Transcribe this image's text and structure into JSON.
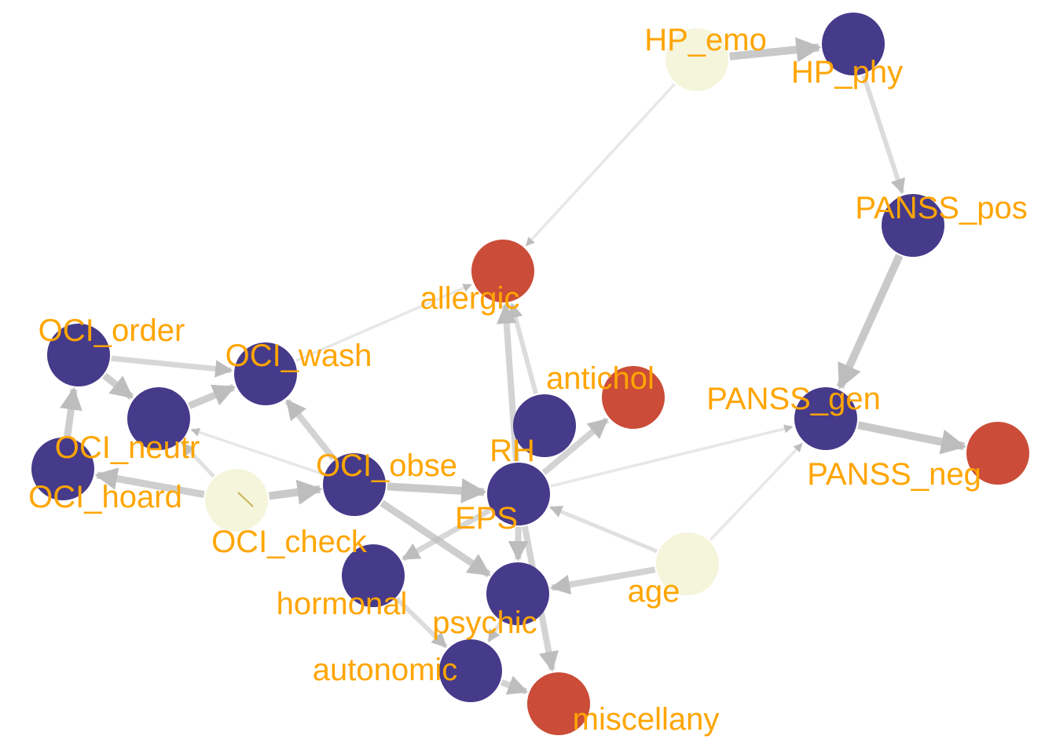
{
  "colors": {
    "background": "#ffffff",
    "label": "#FFA500",
    "node_groups": {
      "purple": "#463A8A",
      "red": "#CB4C38",
      "cream": "#F5F5DC"
    },
    "edge": "#BDBDBD"
  },
  "nodes": [
    {
      "id": "HP_emo",
      "label": "HP_emo",
      "group": "cream"
    },
    {
      "id": "HP_phy",
      "label": "HP_phy",
      "group": "purple"
    },
    {
      "id": "PANSS_pos",
      "label": "PANSS_pos",
      "group": "purple"
    },
    {
      "id": "PANSS_gen",
      "label": "PANSS_gen",
      "group": "purple"
    },
    {
      "id": "PANSS_neg",
      "label": "PANSS_neg",
      "group": "red"
    },
    {
      "id": "allergic",
      "label": "allergic",
      "group": "red"
    },
    {
      "id": "antichol",
      "label": "antichol",
      "group": "red"
    },
    {
      "id": "RH",
      "label": "RH",
      "group": "purple"
    },
    {
      "id": "EPS",
      "label": "EPS",
      "group": "purple"
    },
    {
      "id": "OCI_order",
      "label": "OCI_order",
      "group": "purple"
    },
    {
      "id": "OCI_wash",
      "label": "OCI_wash",
      "group": "purple"
    },
    {
      "id": "OCI_neutr",
      "label": "OCI_neutr",
      "group": "purple"
    },
    {
      "id": "OCI_hoard",
      "label": "OCI_hoard",
      "group": "purple"
    },
    {
      "id": "OCI_check",
      "label": "OCI_check",
      "group": "cream"
    },
    {
      "id": "OCI_obse",
      "label": "OCI_obse",
      "group": "purple"
    },
    {
      "id": "hormonal",
      "label": "hormonal",
      "group": "purple"
    },
    {
      "id": "psychic",
      "label": "psychic",
      "group": "purple"
    },
    {
      "id": "autonomic",
      "label": "autonomic",
      "group": "purple"
    },
    {
      "id": "miscellany",
      "label": "miscellany",
      "group": "red"
    },
    {
      "id": "age",
      "label": "age",
      "group": "cream"
    }
  ],
  "edges": [
    {
      "from": "HP_emo",
      "to": "HP_phy",
      "weight": 0.8
    },
    {
      "from": "HP_phy",
      "to": "PANSS_pos",
      "weight": 0.4
    },
    {
      "from": "HP_emo",
      "to": "allergic",
      "weight": 0.15
    },
    {
      "from": "PANSS_pos",
      "to": "PANSS_gen",
      "weight": 0.8
    },
    {
      "from": "PANSS_gen",
      "to": "PANSS_neg",
      "weight": 0.8
    },
    {
      "from": "EPS",
      "to": "allergic",
      "weight": 0.6
    },
    {
      "from": "EPS",
      "to": "antichol",
      "weight": 0.6
    },
    {
      "from": "EPS",
      "to": "PANSS_gen",
      "weight": 0.15
    },
    {
      "from": "EPS",
      "to": "miscellany",
      "weight": 0.6
    },
    {
      "from": "EPS",
      "to": "psychic",
      "weight": 0.6
    },
    {
      "from": "EPS",
      "to": "hormonal",
      "weight": 0.5
    },
    {
      "from": "RH",
      "to": "allergic",
      "weight": 0.4
    },
    {
      "from": "OCI_order",
      "to": "OCI_wash",
      "weight": 0.5
    },
    {
      "from": "OCI_order",
      "to": "OCI_neutr",
      "weight": 0.7
    },
    {
      "from": "OCI_neutr",
      "to": "OCI_wash",
      "weight": 0.7
    },
    {
      "from": "OCI_hoard",
      "to": "OCI_order",
      "weight": 0.7
    },
    {
      "from": "OCI_check",
      "to": "OCI_hoard",
      "weight": 0.7
    },
    {
      "from": "OCI_check",
      "to": "OCI_neutr",
      "weight": 0.3
    },
    {
      "from": "OCI_check",
      "to": "OCI_obse",
      "weight": 0.8
    },
    {
      "from": "OCI_obse",
      "to": "EPS",
      "weight": 0.8
    },
    {
      "from": "OCI_obse",
      "to": "OCI_wash",
      "weight": 0.6
    },
    {
      "from": "OCI_obse",
      "to": "psychic",
      "weight": 0.7
    },
    {
      "from": "OCI_obse",
      "to": "OCI_neutr",
      "weight": 0.15
    },
    {
      "from": "OCI_wash",
      "to": "allergic",
      "weight": 0.15
    },
    {
      "from": "age",
      "to": "psychic",
      "weight": 0.6
    },
    {
      "from": "age",
      "to": "EPS",
      "weight": 0.3
    },
    {
      "from": "age",
      "to": "PANSS_gen",
      "weight": 0.15
    },
    {
      "from": "hormonal",
      "to": "autonomic",
      "weight": 0.4
    },
    {
      "from": "autonomic",
      "to": "miscellany",
      "weight": 0.6
    },
    {
      "from": "psychic",
      "to": "autonomic",
      "weight": 0.3
    }
  ]
}
